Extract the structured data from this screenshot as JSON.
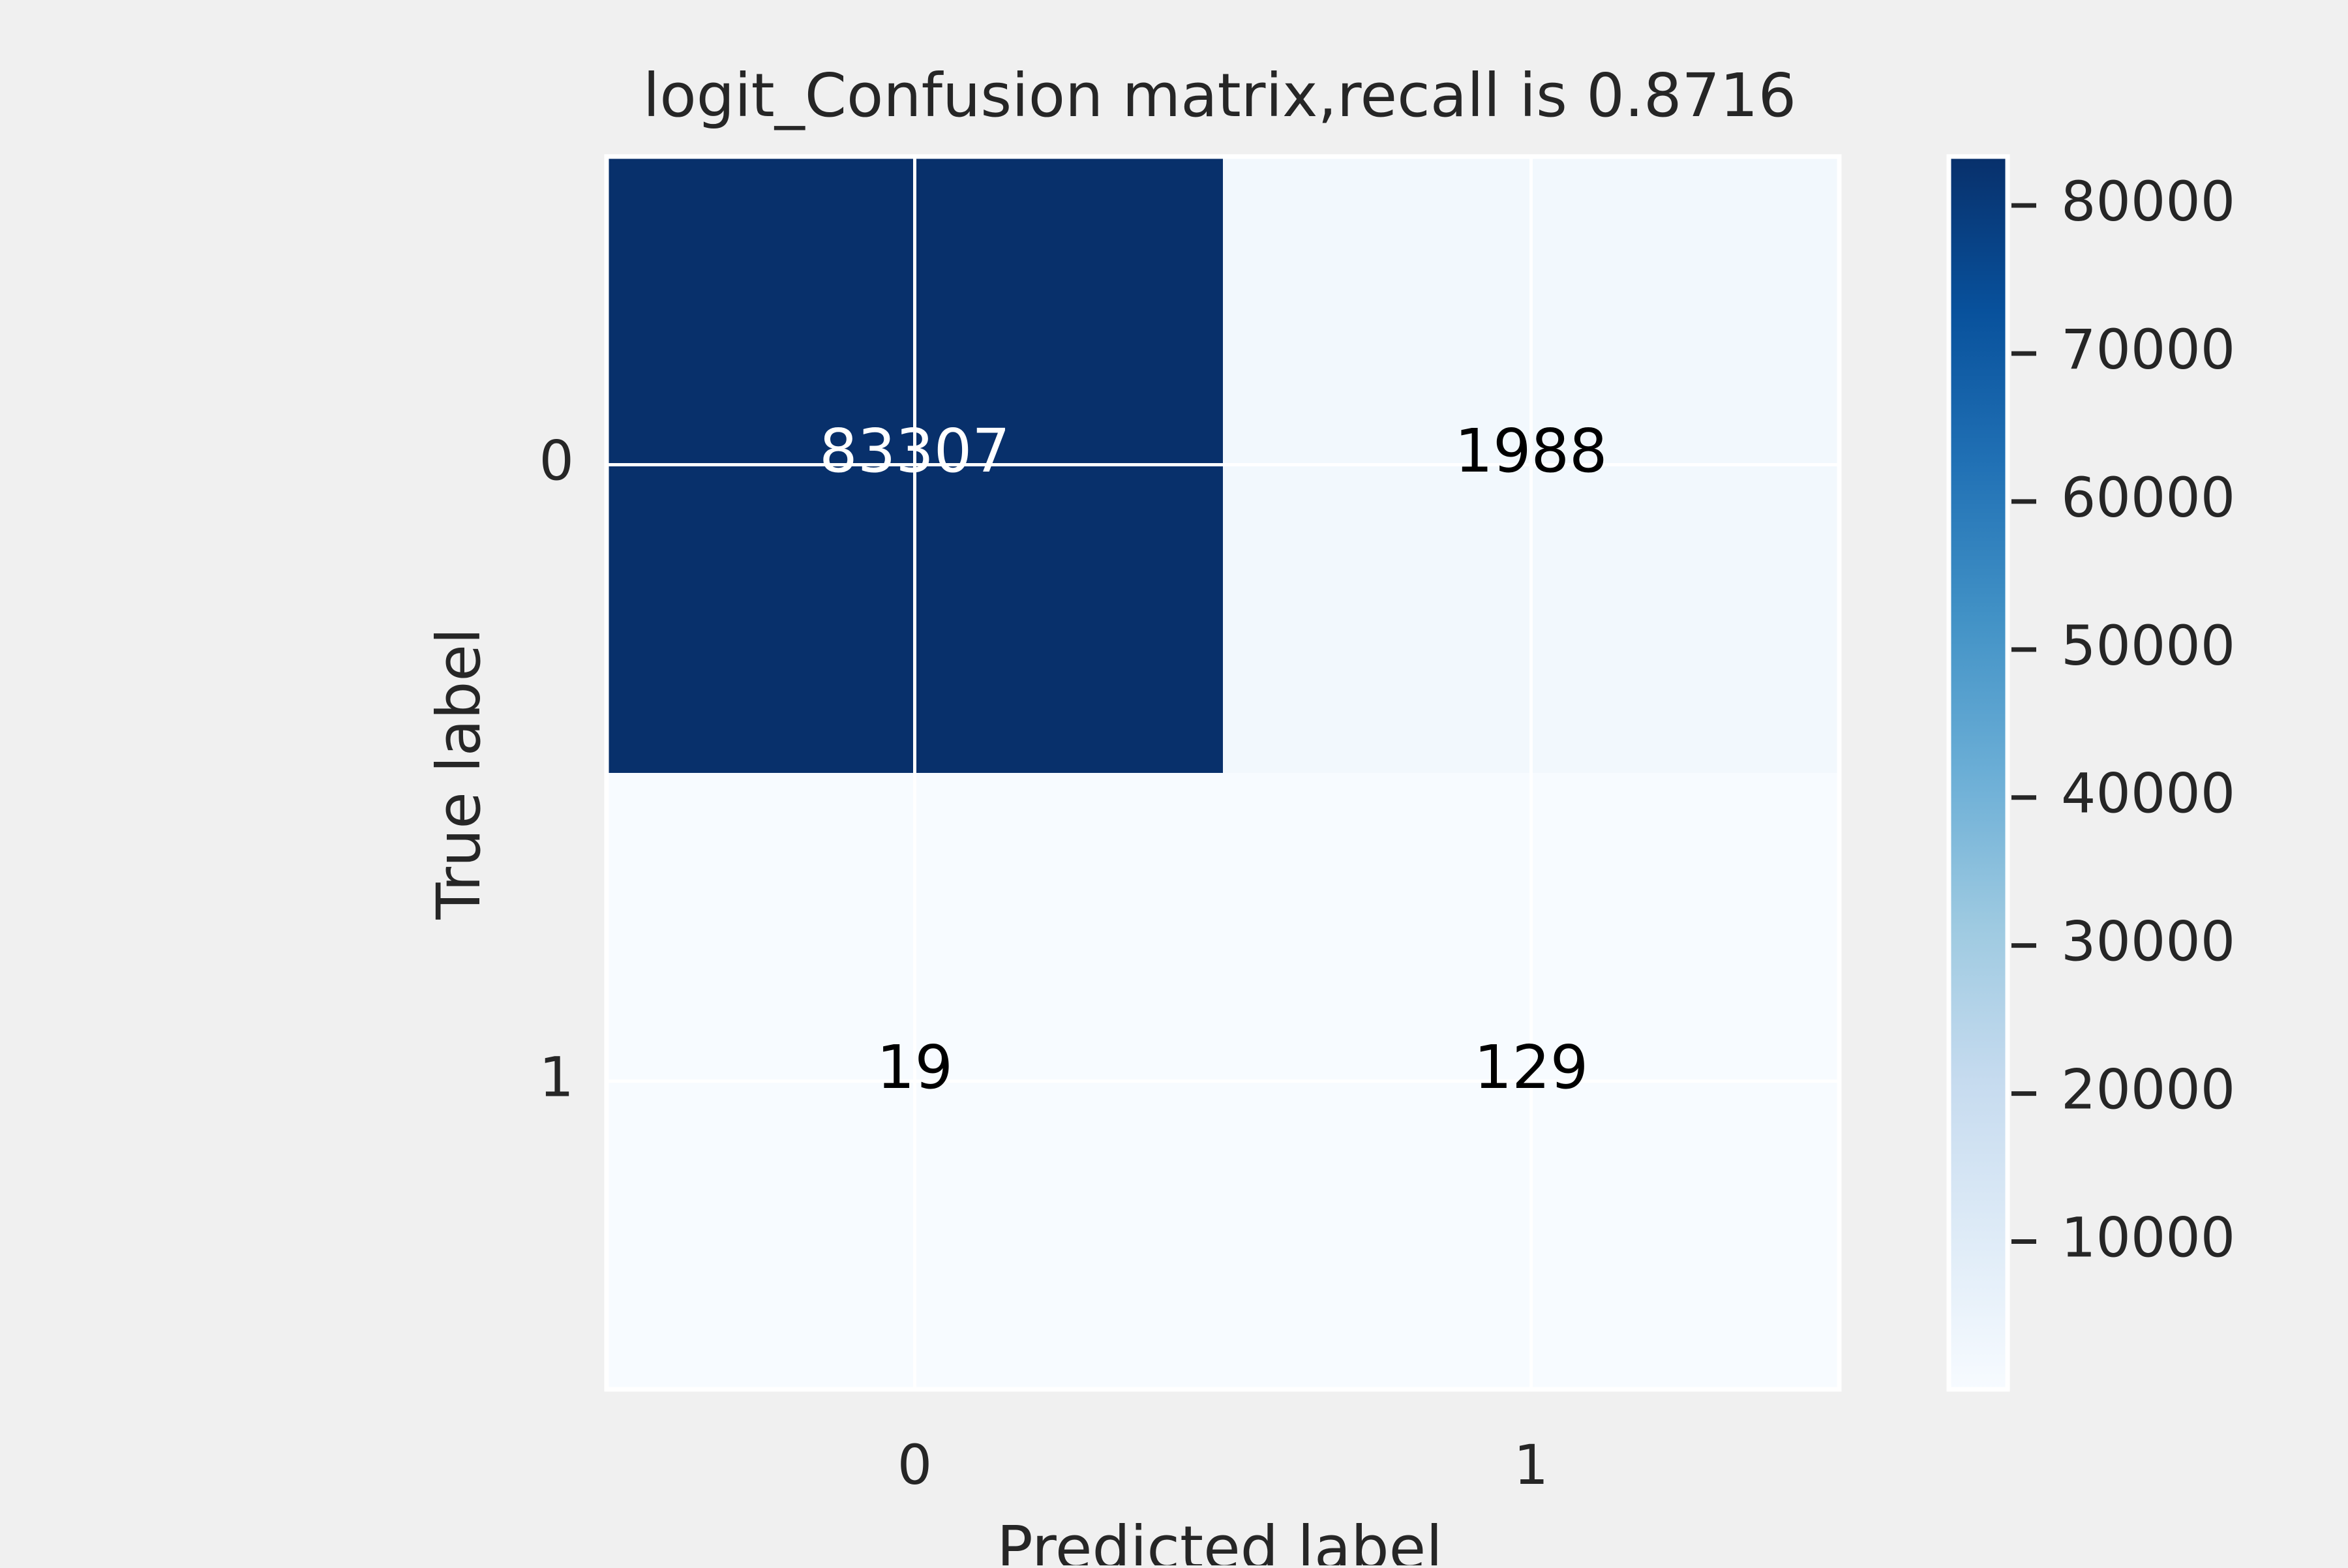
{
  "chart_data": {
    "type": "heatmap",
    "title": "logit_Confusion matrix,recall is 0.8716",
    "xlabel": "Predicted label",
    "ylabel": "True label",
    "x_categories": [
      "0",
      "1"
    ],
    "y_categories": [
      "0",
      "1"
    ],
    "values": [
      [
        83307,
        1988
      ],
      [
        19,
        129
      ]
    ],
    "colormap": "Blues",
    "colorbar": {
      "range": [
        19,
        83307
      ],
      "ticks": [
        10000,
        20000,
        30000,
        40000,
        50000,
        60000,
        70000,
        80000
      ],
      "tick_labels": [
        "10000",
        "20000",
        "30000",
        "40000",
        "50000",
        "60000",
        "70000",
        "80000"
      ]
    },
    "grid": true,
    "colors": {
      "background": "#f0f0f0",
      "grid": "#ffffff",
      "text_dark": "#000000",
      "text_light": "#ffffff",
      "label": "#262626"
    }
  }
}
